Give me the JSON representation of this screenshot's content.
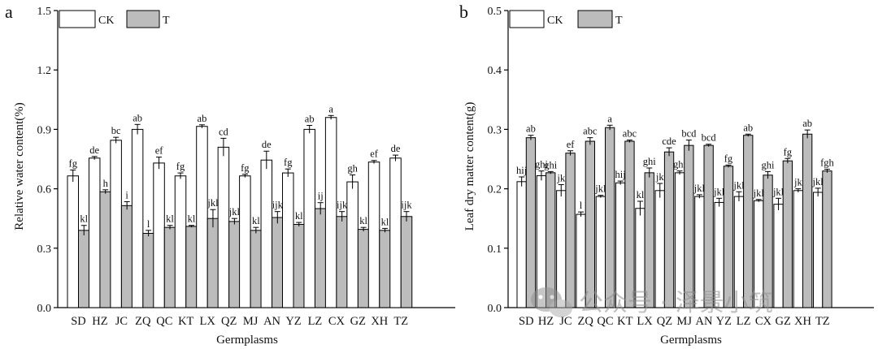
{
  "panels": [
    {
      "letter": "a"
    },
    {
      "letter": "b"
    }
  ],
  "watermark": {
    "text": "公众号 · 泽景小筑",
    "icon": "wechat-bubble-icon",
    "color": "#8f8f8f"
  },
  "colors": {
    "CK": "#ffffff",
    "T": "#bcbcbc",
    "stroke": "#000000"
  },
  "chart_data": [
    {
      "type": "bar",
      "categories": [
        "SD",
        "HZ",
        "JC",
        "ZQ",
        "QC",
        "KT",
        "LX",
        "QZ",
        "MJ",
        "AN",
        "YZ",
        "LZ",
        "CX",
        "GZ",
        "XH",
        "TZ"
      ],
      "series": [
        {
          "name": "CK",
          "values": [
            0.665,
            0.755,
            0.845,
            0.9,
            0.73,
            0.665,
            0.915,
            0.81,
            0.665,
            0.745,
            0.68,
            0.9,
            0.96,
            0.635,
            0.735,
            0.755
          ],
          "errors": [
            0.03,
            0.008,
            0.015,
            0.025,
            0.03,
            0.015,
            0.008,
            0.045,
            0.008,
            0.045,
            0.02,
            0.02,
            0.01,
            0.035,
            0.008,
            0.015
          ],
          "labels": [
            "fg",
            "de",
            "bc",
            "ab",
            "ef",
            "fg",
            "ab",
            "cd",
            "fg",
            "de",
            "fg",
            "ab",
            "a",
            "gh",
            "ef",
            "de"
          ]
        },
        {
          "name": "T",
          "values": [
            0.39,
            0.585,
            0.515,
            0.375,
            0.405,
            0.41,
            0.45,
            0.435,
            0.39,
            0.455,
            0.42,
            0.5,
            0.46,
            0.395,
            0.39,
            0.46
          ],
          "errors": [
            0.025,
            0.01,
            0.02,
            0.015,
            0.01,
            0.005,
            0.045,
            0.015,
            0.015,
            0.03,
            0.01,
            0.03,
            0.025,
            0.01,
            0.01,
            0.025
          ],
          "labels": [
            "kl",
            "h",
            "i",
            "l",
            "kl",
            "kl",
            "jkl",
            "jkl",
            "kl",
            "ijk",
            "kl",
            "ij",
            "ijk",
            "kl",
            "kl",
            "ijk"
          ]
        }
      ],
      "xlabel": "Germplasms",
      "ylabel": "Relative water content(%)",
      "ylim": [
        0.0,
        1.5
      ],
      "yticks": [
        "0.0",
        "0.3",
        "0.6",
        "0.9",
        "1.2",
        "1.5"
      ],
      "legend": "top-left",
      "grid": false
    },
    {
      "type": "bar",
      "categories": [
        "SD",
        "HZ",
        "JC",
        "ZQ",
        "QC",
        "KT",
        "LX",
        "QZ",
        "MJ",
        "AN",
        "YZ",
        "LZ",
        "CX",
        "GZ",
        "XH",
        "TZ"
      ],
      "series": [
        {
          "name": "CK",
          "values": [
            0.212,
            0.222,
            0.197,
            0.157,
            0.187,
            0.21,
            0.167,
            0.197,
            0.227,
            0.187,
            0.177,
            0.187,
            0.18,
            0.174,
            0.197,
            0.194
          ],
          "errors": [
            0.008,
            0.008,
            0.01,
            0.004,
            0.002,
            0.003,
            0.012,
            0.012,
            0.003,
            0.003,
            0.007,
            0.008,
            0.002,
            0.01,
            0.003,
            0.007
          ],
          "labels": [
            "hij",
            "ghi",
            "jk",
            "l",
            "jkl",
            "hij",
            "kl",
            "jk",
            "ghi",
            "jkl",
            "jkl",
            "jkl",
            "jkl",
            "jkl",
            "jk",
            "jkl"
          ]
        },
        {
          "name": "T",
          "values": [
            0.286,
            0.227,
            0.26,
            0.28,
            0.303,
            0.28,
            0.227,
            0.262,
            0.273,
            0.273,
            0.238,
            0.29,
            0.223,
            0.247,
            0.292,
            0.23
          ],
          "errors": [
            0.004,
            0.002,
            0.004,
            0.006,
            0.004,
            0.002,
            0.008,
            0.007,
            0.009,
            0.002,
            0.002,
            0.002,
            0.006,
            0.004,
            0.007,
            0.003
          ],
          "labels": [
            "ab",
            "ghi",
            "ef",
            "abc",
            "a",
            "abc",
            "ghi",
            "cde",
            "bcd",
            "bcd",
            "fg",
            "ab",
            "ghi",
            "fg",
            "ab",
            "fgh"
          ]
        }
      ],
      "xlabel": "Germplasms",
      "ylabel": "Leaf dry matter content(g)",
      "ylim": [
        0.0,
        0.5
      ],
      "yticks": [
        "0.0",
        "0.1",
        "0.2",
        "0.3",
        "0.4",
        "0.5"
      ],
      "legend": "top-left",
      "grid": false
    }
  ]
}
